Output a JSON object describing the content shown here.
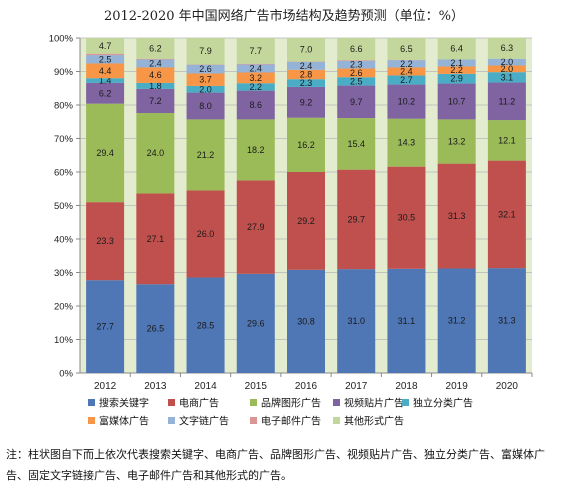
{
  "chart_data": {
    "type": "bar",
    "stacked": true,
    "title": "2012-2020 年中国网络广告市场结构及趋势预测（单位：%）",
    "categories": [
      "2012",
      "2013",
      "2014",
      "2015",
      "2016",
      "2017",
      "2018",
      "2019",
      "2020"
    ],
    "ylim": [
      0,
      100
    ],
    "yticks": [
      "0%",
      "10%",
      "20%",
      "30%",
      "40%",
      "50%",
      "60%",
      "70%",
      "80%",
      "90%",
      "100%"
    ],
    "grid": true,
    "legend_position": "bottom",
    "series": [
      {
        "name": "搜索关键字",
        "color": "#4f76b5",
        "values": [
          27.7,
          26.5,
          28.5,
          29.6,
          30.8,
          31.0,
          31.1,
          31.2,
          31.3
        ]
      },
      {
        "name": "电商广告",
        "color": "#c0504d",
        "values": [
          23.3,
          27.1,
          26.0,
          27.9,
          29.2,
          29.7,
          30.5,
          31.3,
          32.1
        ]
      },
      {
        "name": "品牌图形广告",
        "color": "#9bbb59",
        "values": [
          29.4,
          24.0,
          21.2,
          18.2,
          16.2,
          15.4,
          14.3,
          13.2,
          12.1
        ]
      },
      {
        "name": "视频贴片广告",
        "color": "#8064a2",
        "values": [
          6.2,
          7.2,
          8.0,
          8.6,
          9.2,
          9.7,
          10.2,
          10.7,
          11.2
        ]
      },
      {
        "name": "独立分类广告",
        "color": "#4bacc6",
        "values": [
          1.4,
          1.8,
          2.0,
          2.2,
          2.3,
          2.5,
          2.7,
          2.9,
          3.1
        ]
      },
      {
        "name": "富媒体广告",
        "color": "#f79646",
        "values": [
          4.4,
          4.6,
          3.7,
          3.2,
          2.8,
          2.6,
          2.4,
          2.2,
          2.0
        ]
      },
      {
        "name": "文字链广告",
        "color": "#95b3d7",
        "values": [
          2.5,
          2.4,
          2.6,
          2.4,
          2.4,
          2.3,
          2.2,
          2.1,
          2.0
        ]
      },
      {
        "name": "电子邮件广告",
        "color": "#da9694",
        "values": [
          0.4,
          0.2,
          0.1,
          0.2,
          0.1,
          0.2,
          0.1,
          0.0,
          0.0
        ]
      },
      {
        "name": "其他形式广告",
        "color": "#c3d69b",
        "values": [
          4.7,
          6.2,
          7.9,
          7.7,
          7.0,
          6.6,
          6.5,
          6.4,
          6.3
        ]
      }
    ],
    "data_labels": [
      [
        "27.7",
        "26.5",
        "28.5",
        "29.6",
        "30.8",
        "31.0",
        "31.1",
        "31.2",
        "31.3"
      ],
      [
        "23.3",
        "27.1",
        "26.0",
        "27.9",
        "29.2",
        "29.7",
        "30.5",
        "31.3",
        "32.1"
      ],
      [
        "29.4",
        "24.0",
        "21.2",
        "18.2",
        "16.2",
        "15.4",
        "14.3",
        "13.2",
        "12.1"
      ],
      [
        "6.2",
        "7.2",
        "8.0",
        "8.6",
        "9.2",
        "9.7",
        "10.2",
        "10.7",
        "11.2"
      ],
      [
        "1.4",
        "1.8",
        "2.0",
        "2.2",
        "2.3",
        "2.5",
        "2.7",
        "2.9",
        "3.1"
      ],
      [
        "4.4",
        "4.6",
        "3.7",
        "3.2",
        "2.8",
        "2.6",
        "2.4",
        "2.2",
        "2.0"
      ],
      [
        "2.5",
        "2.4",
        "2.6",
        "2.4",
        "2.4",
        "2.3",
        "2.2",
        "2.1",
        "2.0"
      ],
      [
        "",
        "",
        "",
        "",
        "",
        "",
        "",
        "",
        ""
      ],
      [
        "4.7",
        "6.2",
        "7.9",
        "7.7",
        "7.0",
        "6.6",
        "6.5",
        "6.4",
        "6.3"
      ]
    ],
    "plot_background": "#e4ecd0"
  },
  "footnote": "注：柱状图自下而上依次代表搜索关键字、电商广告、品牌图形广告、视频贴片广告、独立分类广告、富媒体广告、固定文字链接广告、电子邮件广告和其他形式的广告。"
}
